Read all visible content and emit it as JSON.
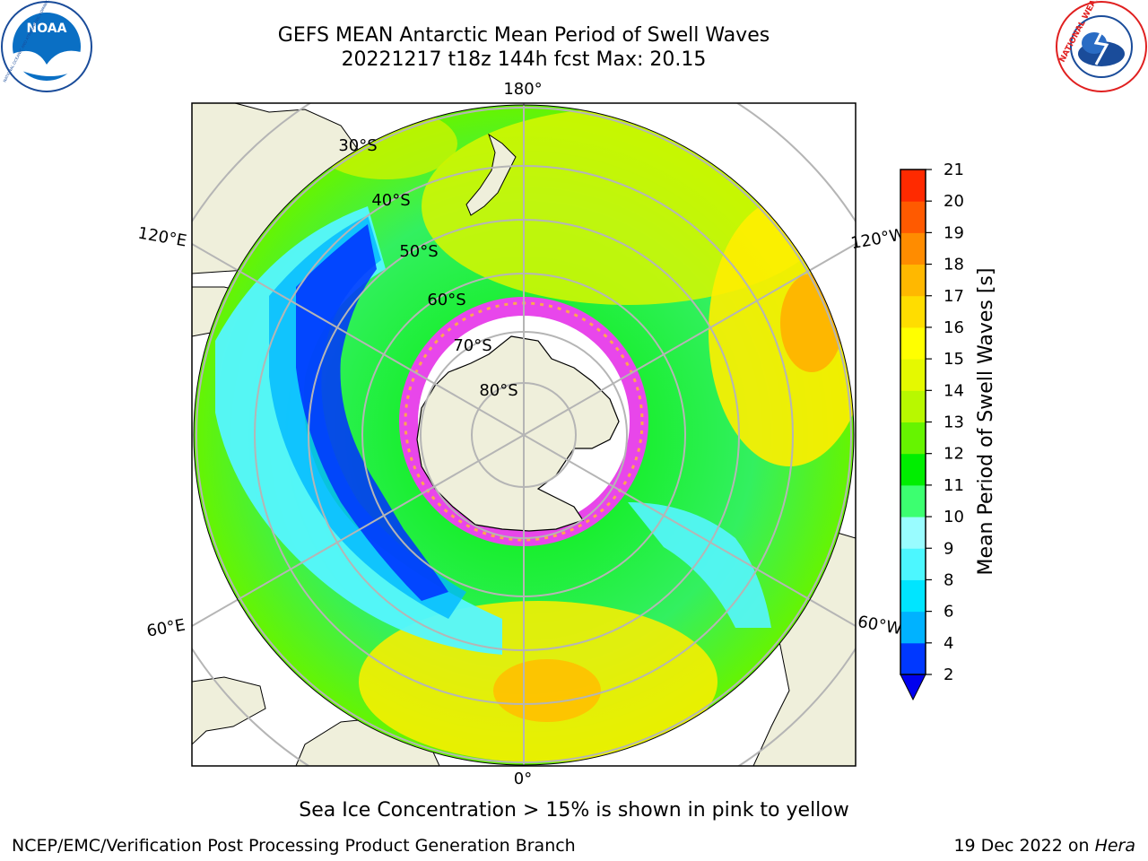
{
  "title": {
    "line1": "GEFS MEAN Antarctic Mean Period of Swell Waves",
    "line2": "20221217 t18z 144h fcst   Max: 20.15"
  },
  "logos": {
    "noaa": "NOAA",
    "noaa_ring": "NATIONAL OCEANIC AND ATMOSPHERIC ADMINISTRATION · U.S. DEPARTMENT OF COMMERCE",
    "nws_ring": "NATIONAL WEATHER SERVICE"
  },
  "map": {
    "lon_labels": [
      "180°",
      "0°",
      "120°E",
      "120°W",
      "60°E",
      "60°W"
    ],
    "lat_labels": [
      "30°S",
      "40°S",
      "50°S",
      "60°S",
      "70°S",
      "80°S"
    ]
  },
  "colorbar": {
    "label": "Mean Period of Swell Waves [s]",
    "ticks": [
      "2",
      "4",
      "6",
      "8",
      "9",
      "10",
      "11",
      "12",
      "13",
      "14",
      "15",
      "16",
      "17",
      "18",
      "19",
      "20",
      "21"
    ],
    "colors": [
      "#0038ff",
      "#00b2ff",
      "#00e5ff",
      "#4cf7ff",
      "#99fcff",
      "#3cff70",
      "#00ee00",
      "#66f400",
      "#b8f800",
      "#e5f900",
      "#ffff00",
      "#ffdd00",
      "#ffb800",
      "#ff8c00",
      "#ff5a00",
      "#ff2a00"
    ],
    "extend_color": "#0000ee"
  },
  "footer": {
    "note": "Sea Ice Concentration > 15% is shown in pink to yellow",
    "left": "NCEP/EMC/Verification Post Processing Product Generation Branch",
    "right_prefix": "19 Dec 2022 on ",
    "right_host": "Hera"
  }
}
